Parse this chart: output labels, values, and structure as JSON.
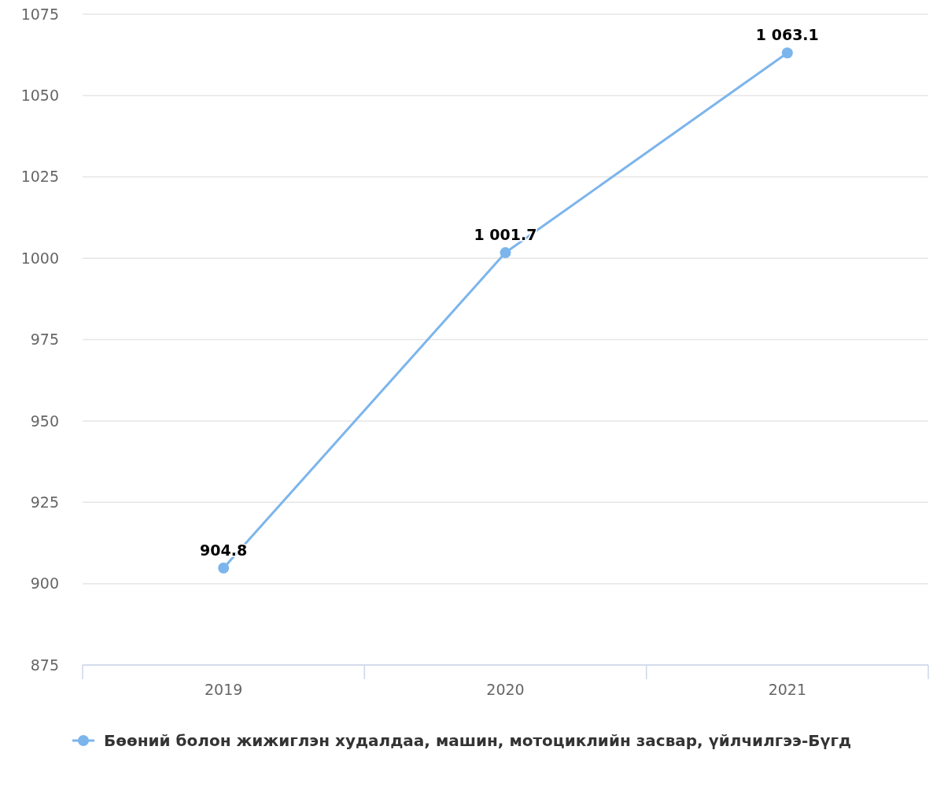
{
  "chart_data": {
    "type": "line",
    "categories": [
      "2019",
      "2020",
      "2021"
    ],
    "series": [
      {
        "name": "Бөөний болон жижиглэн худалдаа, машин, мотоциклийн засвар, үйлчилгээ-Бүгд",
        "color": "#7cb5ec",
        "values": [
          904.8,
          1001.7,
          1063.1
        ],
        "value_labels": [
          "904.8",
          "1 001.7",
          "1 063.1"
        ]
      }
    ],
    "ylim": [
      875,
      1075
    ],
    "yticks": [
      875,
      900,
      925,
      950,
      975,
      1000,
      1025,
      1050,
      1075
    ],
    "grid": "y",
    "legend": "bottom",
    "marker": "circle",
    "line_style": "solid"
  }
}
